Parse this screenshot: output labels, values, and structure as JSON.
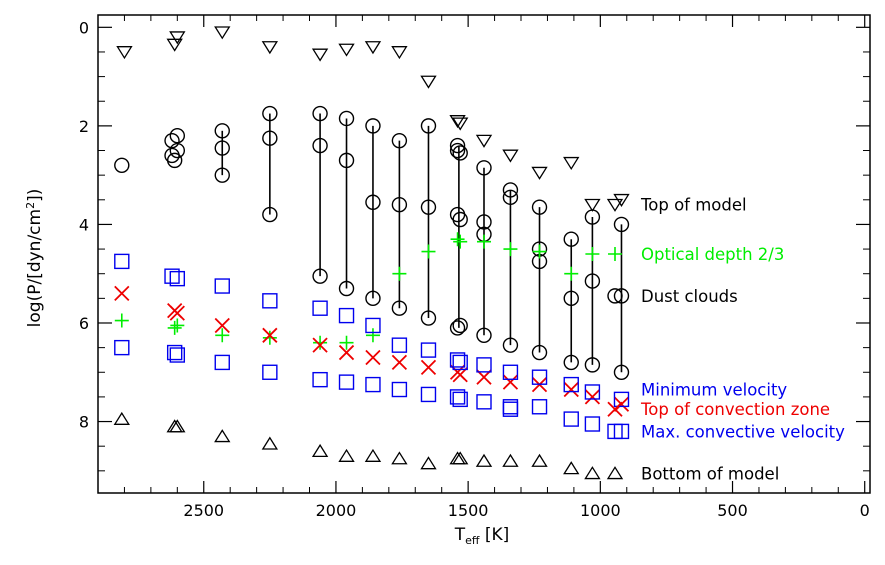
{
  "chart_data": {
    "type": "scatter",
    "xlabel": "T",
    "xlabel_sub": "eff",
    "xlabel_unit": " [K]",
    "ylabel": "log(P/[dyn/cm",
    "ylabel_sup": "2",
    "ylabel_end": "])",
    "xlim": [
      2900,
      -20
    ],
    "ylim": [
      -0.25,
      9.45
    ],
    "x_ticks": [
      2500,
      2000,
      1500,
      1000,
      500,
      0
    ],
    "y_ticks": [
      0,
      2,
      4,
      6,
      8
    ],
    "colors": {
      "black": "#000000",
      "green": "#00ee00",
      "red": "#ee0000",
      "blue": "#0000ee"
    },
    "series": [
      {
        "name": "Top of model",
        "marker": "triangle-down",
        "color": "#000000",
        "points": [
          [
            2800,
            0.5
          ],
          [
            2610,
            0.35
          ],
          [
            2600,
            0.2
          ],
          [
            2430,
            0.1
          ],
          [
            2250,
            0.4
          ],
          [
            2060,
            0.55
          ],
          [
            1960,
            0.45
          ],
          [
            1860,
            0.4
          ],
          [
            1760,
            0.5
          ],
          [
            1650,
            1.1
          ],
          [
            1540,
            1.9
          ],
          [
            1530,
            1.95
          ],
          [
            1440,
            2.3
          ],
          [
            1340,
            2.6
          ],
          [
            1230,
            2.95
          ],
          [
            1110,
            2.75
          ],
          [
            1030,
            3.6
          ],
          [
            920,
            3.5
          ]
        ]
      },
      {
        "name": "Dust clouds",
        "marker": "circle",
        "color": "#000000",
        "points": [
          [
            2810,
            2.8
          ],
          [
            2620,
            2.3
          ],
          [
            2600,
            2.2
          ],
          [
            2620,
            2.6
          ],
          [
            2600,
            2.5
          ],
          [
            2610,
            2.7
          ],
          [
            2430,
            2.1
          ],
          [
            2430,
            2.45
          ],
          [
            2430,
            3.0
          ],
          [
            2250,
            1.75
          ],
          [
            2250,
            2.25
          ],
          [
            2250,
            3.8
          ],
          [
            2060,
            1.75
          ],
          [
            2060,
            2.4
          ],
          [
            2060,
            5.05
          ],
          [
            1960,
            1.85
          ],
          [
            1960,
            2.7
          ],
          [
            1960,
            5.3
          ],
          [
            1860,
            2.0
          ],
          [
            1860,
            3.55
          ],
          [
            1860,
            5.5
          ],
          [
            1760,
            2.3
          ],
          [
            1760,
            3.6
          ],
          [
            1760,
            5.7
          ],
          [
            1650,
            2.0
          ],
          [
            1650,
            3.65
          ],
          [
            1650,
            5.9
          ],
          [
            1540,
            2.4
          ],
          [
            1540,
            2.5
          ],
          [
            1530,
            2.55
          ],
          [
            1540,
            3.8
          ],
          [
            1530,
            3.9
          ],
          [
            1530,
            6.05
          ],
          [
            1540,
            6.1
          ],
          [
            1440,
            2.85
          ],
          [
            1440,
            3.95
          ],
          [
            1440,
            4.2
          ],
          [
            1440,
            6.25
          ],
          [
            1340,
            3.3
          ],
          [
            1340,
            3.45
          ],
          [
            1340,
            6.45
          ],
          [
            1230,
            3.65
          ],
          [
            1230,
            4.5
          ],
          [
            1230,
            4.75
          ],
          [
            1230,
            6.6
          ],
          [
            1110,
            4.3
          ],
          [
            1110,
            5.5
          ],
          [
            1110,
            6.8
          ],
          [
            1030,
            3.85
          ],
          [
            1030,
            5.15
          ],
          [
            1030,
            6.85
          ],
          [
            920,
            4.0
          ],
          [
            920,
            5.45
          ],
          [
            920,
            7.0
          ]
        ]
      },
      {
        "name": "Optical depth 2/3",
        "marker": "plus",
        "color": "#00ee00",
        "points": [
          [
            2810,
            5.95
          ],
          [
            2610,
            6.1
          ],
          [
            2600,
            6.05
          ],
          [
            2430,
            6.25
          ],
          [
            2250,
            6.3
          ],
          [
            2060,
            6.4
          ],
          [
            1960,
            6.4
          ],
          [
            1860,
            6.25
          ],
          [
            1760,
            5.0
          ],
          [
            1650,
            4.55
          ],
          [
            1540,
            4.3
          ],
          [
            1530,
            4.35
          ],
          [
            1440,
            4.35
          ],
          [
            1340,
            4.5
          ],
          [
            1230,
            4.55
          ],
          [
            1110,
            5.0
          ],
          [
            1030,
            4.6
          ]
        ]
      },
      {
        "name": "Top of convection zone",
        "marker": "x",
        "color": "#ee0000",
        "points": [
          [
            2810,
            5.4
          ],
          [
            2610,
            5.75
          ],
          [
            2600,
            5.8
          ],
          [
            2430,
            6.05
          ],
          [
            2250,
            6.25
          ],
          [
            2060,
            6.45
          ],
          [
            1960,
            6.6
          ],
          [
            1860,
            6.7
          ],
          [
            1760,
            6.8
          ],
          [
            1650,
            6.9
          ],
          [
            1540,
            7.0
          ],
          [
            1530,
            7.05
          ],
          [
            1440,
            7.1
          ],
          [
            1340,
            7.2
          ],
          [
            1230,
            7.25
          ],
          [
            1110,
            7.35
          ],
          [
            1030,
            7.5
          ],
          [
            920,
            7.65
          ]
        ]
      },
      {
        "name": "Minimum velocity",
        "marker": "square",
        "color": "#0000ee",
        "points": [
          [
            2810,
            6.5
          ],
          [
            2610,
            6.6
          ],
          [
            2600,
            6.65
          ],
          [
            2430,
            6.8
          ],
          [
            2250,
            7.0
          ],
          [
            2060,
            5.7
          ],
          [
            1960,
            5.85
          ],
          [
            1860,
            6.05
          ],
          [
            1760,
            6.45
          ],
          [
            1650,
            6.55
          ],
          [
            1540,
            6.75
          ],
          [
            1530,
            6.8
          ],
          [
            1440,
            6.85
          ],
          [
            1340,
            7.0
          ],
          [
            1230,
            7.1
          ],
          [
            1110,
            7.25
          ],
          [
            1030,
            7.4
          ],
          [
            920,
            7.55
          ]
        ]
      },
      {
        "name": "Max. convective velocity",
        "marker": "square",
        "color": "#0000ee",
        "points": [
          [
            2810,
            4.75
          ],
          [
            2620,
            5.05
          ],
          [
            2600,
            5.1
          ],
          [
            2430,
            5.25
          ],
          [
            2250,
            5.55
          ],
          [
            2060,
            7.15
          ],
          [
            1960,
            7.2
          ],
          [
            1860,
            7.25
          ],
          [
            1760,
            7.35
          ],
          [
            1650,
            7.45
          ],
          [
            1540,
            7.5
          ],
          [
            1530,
            7.55
          ],
          [
            1440,
            7.6
          ],
          [
            1340,
            7.7
          ],
          [
            1340,
            7.75
          ],
          [
            1230,
            7.7
          ],
          [
            1110,
            7.95
          ],
          [
            1030,
            8.05
          ],
          [
            920,
            8.2
          ]
        ]
      },
      {
        "name": "Bottom of model",
        "marker": "triangle-up",
        "color": "#000000",
        "points": [
          [
            2810,
            7.95
          ],
          [
            2610,
            8.1
          ],
          [
            2600,
            8.1
          ],
          [
            2430,
            8.3
          ],
          [
            2250,
            8.45
          ],
          [
            2060,
            8.6
          ],
          [
            1960,
            8.7
          ],
          [
            1860,
            8.7
          ],
          [
            1760,
            8.75
          ],
          [
            1650,
            8.85
          ],
          [
            1540,
            8.75
          ],
          [
            1530,
            8.75
          ],
          [
            1440,
            8.8
          ],
          [
            1340,
            8.8
          ],
          [
            1230,
            8.8
          ],
          [
            1110,
            8.95
          ],
          [
            1030,
            9.05
          ]
        ]
      }
    ],
    "cloud_lines": [
      [
        2430,
        2.1,
        3.0
      ],
      [
        2250,
        1.75,
        3.8
      ],
      [
        2060,
        1.75,
        5.05
      ],
      [
        1960,
        1.85,
        5.3
      ],
      [
        1860,
        2.0,
        5.5
      ],
      [
        1760,
        2.3,
        5.7
      ],
      [
        1650,
        2.0,
        5.9
      ],
      [
        1535,
        2.4,
        6.1
      ],
      [
        1440,
        2.85,
        6.25
      ],
      [
        1340,
        3.3,
        6.45
      ],
      [
        1230,
        3.65,
        6.6
      ],
      [
        1110,
        4.3,
        6.8
      ],
      [
        1030,
        3.85,
        6.85
      ],
      [
        920,
        4.0,
        7.0
      ]
    ],
    "legend": [
      {
        "label": "Top of model",
        "marker": "triangle-down",
        "color": "#000000",
        "text_color": "#000000",
        "y": 3.6
      },
      {
        "label": "Optical depth 2/3",
        "marker": "plus",
        "color": "#00ee00",
        "text_color": "#00ee00",
        "y": 4.6
      },
      {
        "label": "Dust clouds",
        "marker": "circle",
        "color": "#000000",
        "text_color": "#000000",
        "y": 5.45
      },
      {
        "label": "Minimum velocity",
        "marker": "",
        "color": "#0000ee",
        "text_color": "#0000ee",
        "y": 7.35
      },
      {
        "label": "Top of convection zone",
        "marker": "x",
        "color": "#ee0000",
        "text_color": "#ee0000",
        "y": 7.75
      },
      {
        "label": "Max. convective velocity",
        "marker": "square",
        "color": "#0000ee",
        "text_color": "#0000ee",
        "y": 8.2
      },
      {
        "label": "Bottom of model",
        "marker": "triangle-up",
        "color": "#000000",
        "text_color": "#000000",
        "y": 9.05
      }
    ],
    "legend_position": "right"
  }
}
